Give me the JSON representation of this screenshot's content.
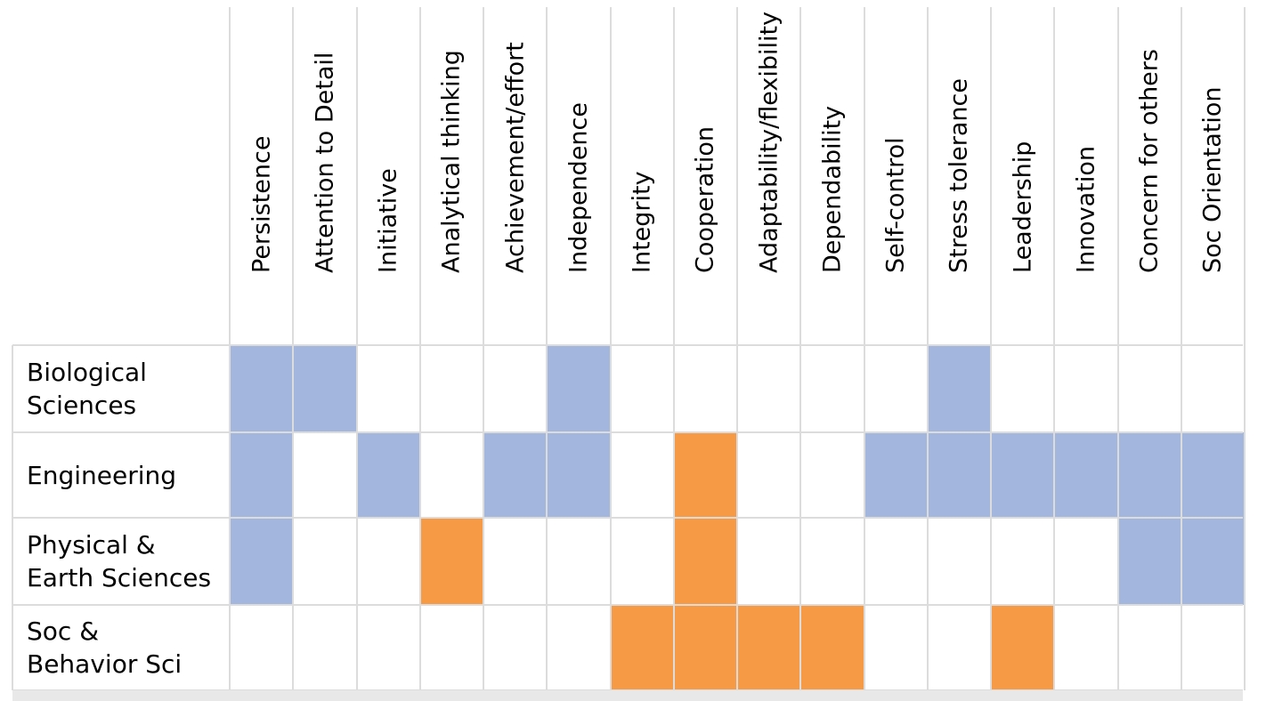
{
  "chart_data": {
    "type": "heatmap",
    "columns": [
      "Persistence",
      "Attention to Detail",
      "Initiative",
      "Analytical thinking",
      "Achievement/effort",
      "Independence",
      "Integrity",
      "Cooperation",
      "Adaptability/flexibility",
      "Dependability",
      "Self-control",
      "Stress tolerance",
      "Leadership",
      "Innovation",
      "Concern for others",
      "Soc Orientation"
    ],
    "rows": [
      "Biological\nSciences",
      "Engineering",
      "Physical &\nEarth Sciences",
      "Soc &\nBehavior Sci"
    ],
    "values": [
      [
        "blue",
        "blue",
        "",
        "",
        "",
        "blue",
        "",
        "",
        "",
        "",
        "",
        "blue",
        "",
        "",
        "",
        ""
      ],
      [
        "blue",
        "",
        "blue",
        "",
        "blue",
        "blue",
        "",
        "orange",
        "",
        "",
        "blue",
        "blue",
        "blue",
        "blue",
        "blue",
        "blue"
      ],
      [
        "blue",
        "",
        "",
        "orange",
        "",
        "",
        "",
        "orange",
        "",
        "",
        "",
        "",
        "",
        "",
        "blue",
        "blue"
      ],
      [
        "",
        "",
        "",
        "",
        "",
        "",
        "orange",
        "orange",
        "orange",
        "orange",
        "",
        "",
        "orange",
        "",
        "",
        ""
      ]
    ],
    "colors": {
      "blue": "#a3b6de",
      "orange": "#f69a45",
      "empty": "#ffffff"
    }
  }
}
